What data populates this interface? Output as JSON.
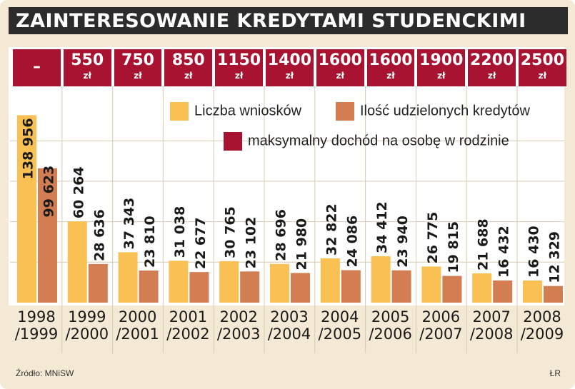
{
  "title": "ZAINTERESOWANIE KREDYTAMI STUDENCKIMI",
  "source": "Źródło: MNiSW",
  "author": "ŁR",
  "colors": {
    "applications": "#f9c053",
    "granted": "#d27d52",
    "income": "#a81331"
  },
  "legend": {
    "applications": "Liczba wniosków",
    "granted": "Ilość udzielonych kredytów",
    "income": "maksymalny  dochód na osobę w rodzinie"
  },
  "income_currency": "zł",
  "chart_data": {
    "type": "bar",
    "title": "ZAINTERESOWANIE KREDYTAMI STUDENCKIMI",
    "categories": [
      "1998\n/1999",
      "1999\n/2000",
      "2000\n/2001",
      "2001\n/2002",
      "2002\n/2003",
      "2003\n/2004",
      "2004\n/2005",
      "2005\n/2006",
      "2006\n/2007",
      "2007\n/2008",
      "2008\n/2009"
    ],
    "income_limits": [
      "–",
      "550",
      "750",
      "850",
      "1150",
      "1400",
      "1600",
      "1600",
      "1900",
      "2200",
      "2500"
    ],
    "series": [
      {
        "name": "Liczba wniosków",
        "values": [
          138956,
          60264,
          37343,
          31038,
          30765,
          28696,
          32822,
          34412,
          26775,
          21688,
          16430
        ],
        "labels": [
          "138 956",
          "60 264",
          "37 343",
          "31 038",
          "30 765",
          "28 696",
          "32 822",
          "34 412",
          "26 775",
          "21 688",
          "16 430"
        ]
      },
      {
        "name": "Ilość udzielonych kredytów",
        "values": [
          99623,
          28636,
          23810,
          22677,
          23102,
          21980,
          24086,
          23940,
          19815,
          16432,
          12329
        ],
        "labels": [
          "99 623",
          "28 636",
          "23 810",
          "22 677",
          "23 102",
          "21 980",
          "24 086",
          "23 940",
          "19 815",
          "16 432",
          "12 329"
        ]
      }
    ],
    "ylim": [
      0,
      145000
    ],
    "grid": true,
    "legend_position": "top-right"
  }
}
